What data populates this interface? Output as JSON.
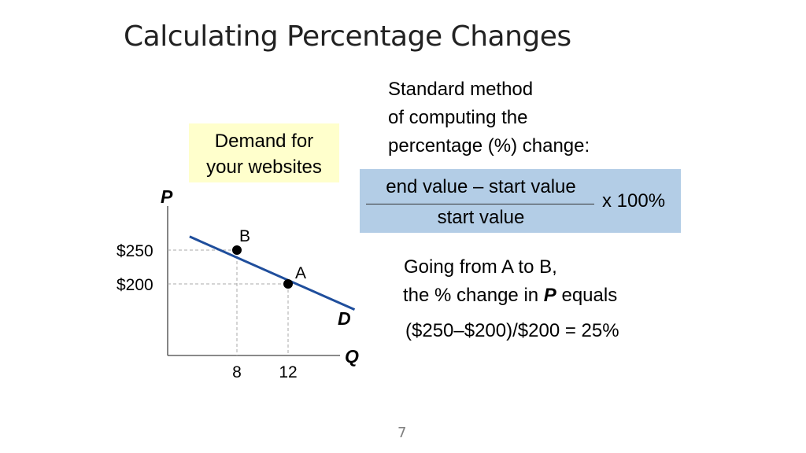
{
  "slide": {
    "title": "Calculating Percentage Changes",
    "page_number": "7"
  },
  "explanation": {
    "std_line1": "Standard method",
    "std_line2": "of computing the",
    "std_line3": "percentage (%) change:",
    "formula_numerator": "end value – start value",
    "formula_denominator": "start value",
    "formula_multiplier": "x 100%",
    "going_line1": "Going from A to B,",
    "going_line2_pre": "the % change in ",
    "going_line2_var": "P",
    "going_line2_post": " equals",
    "calculation": "($250–$200)/$200 = 25%"
  },
  "demand_label": {
    "line1": "Demand for",
    "line2": "your websites"
  },
  "colors": {
    "demand_box_bg": "#ffffcc",
    "formula_box_bg": "#b3cde6",
    "demand_curve": "#1f4e9c"
  },
  "chart_data": {
    "type": "line",
    "xlabel": "Q",
    "ylabel": "P",
    "xlim": [
      0,
      20
    ],
    "ylim": [
      100,
      320
    ],
    "series": [
      {
        "name": "D",
        "points": [
          [
            4.3,
            270
          ],
          [
            17.2,
            162
          ]
        ]
      }
    ],
    "points": [
      {
        "label": "B",
        "x": 8,
        "y": 250
      },
      {
        "label": "A",
        "x": 12,
        "y": 200
      }
    ],
    "x_ticks": [
      {
        "value": 8,
        "label": "8"
      },
      {
        "value": 12,
        "label": "12"
      }
    ],
    "y_ticks": [
      {
        "value": 250,
        "label": "$250"
      },
      {
        "value": 200,
        "label": "$200"
      }
    ],
    "curve_label": "D",
    "grid": false
  }
}
